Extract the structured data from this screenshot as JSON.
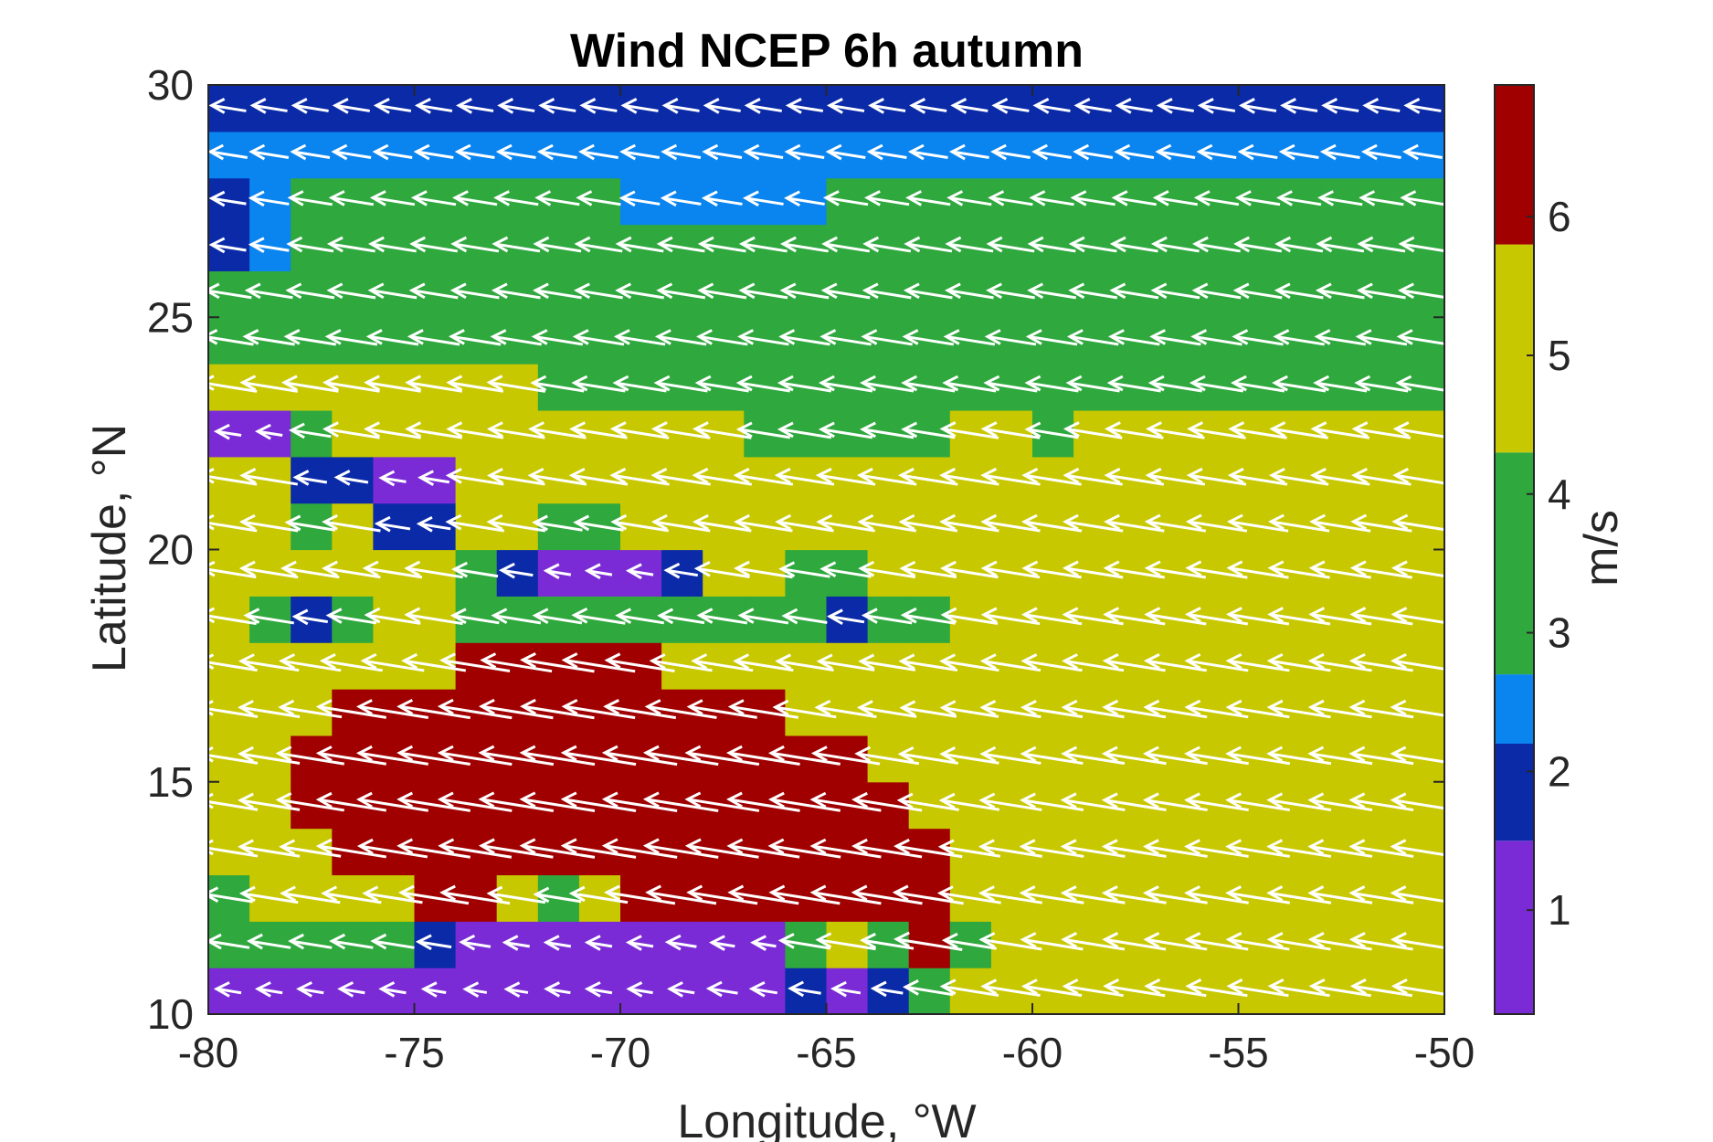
{
  "chart_data": {
    "type": "heatmap",
    "title": "Wind NCEP 6h autumn",
    "xlabel": "Longitude, °W",
    "ylabel": "Latitude, °N",
    "colorbar_label": "m/s",
    "xlim": [
      -80,
      -50
    ],
    "ylim": [
      10,
      30
    ],
    "xticks": [
      -80,
      -75,
      -70,
      -65,
      -60,
      -55,
      -50
    ],
    "yticks": [
      10,
      15,
      20,
      25,
      30
    ],
    "colorbar_range": [
      0.25,
      6.95
    ],
    "colorbar_ticks": [
      1,
      2,
      3,
      4,
      5,
      6
    ],
    "grid": false,
    "colormap": [
      {
        "to": 1.5,
        "color": "#7a2bd6"
      },
      {
        "to": 2.2,
        "color": "#0a2aa8"
      },
      {
        "to": 2.7,
        "color": "#0a84ef"
      },
      {
        "to": 4.3,
        "color": "#2fa83e"
      },
      {
        "to": 5.8,
        "color": "#c8c800"
      },
      {
        "to": 6.95,
        "color": "#a00000"
      }
    ],
    "grid_lon_start": -80,
    "grid_lat_start": 10,
    "cell_size_deg": 1,
    "wind_speed_rows_from_lat10": [
      [
        1.0,
        1.0,
        1.0,
        1.0,
        1.0,
        0.7,
        0.6,
        0.6,
        0.9,
        1.0,
        0.9,
        1.0,
        1.5,
        1.1,
        1.7,
        1.3,
        1.6,
        3.8,
        4.8,
        4.9,
        5.0,
        5.1,
        5.2,
        5.2,
        5.2,
        5.2,
        5.2,
        5.2,
        5.2,
        5.2
      ],
      [
        3.0,
        3.0,
        3.0,
        3.0,
        3.0,
        2.0,
        1.5,
        1.0,
        1.0,
        1.0,
        1.0,
        1.5,
        0.8,
        0.8,
        4.0,
        5.0,
        4.2,
        6.0,
        4.3,
        5.3,
        5.3,
        5.4,
        5.4,
        5.4,
        5.4,
        5.4,
        5.4,
        5.4,
        5.4,
        5.4
      ],
      [
        3.8,
        4.8,
        5.0,
        5.0,
        5.0,
        6.2,
        6.2,
        4.8,
        3.5,
        4.8,
        6.3,
        6.3,
        6.3,
        6.3,
        6.3,
        6.3,
        6.3,
        6.3,
        5.4,
        5.4,
        5.5,
        5.5,
        5.5,
        5.5,
        5.5,
        5.5,
        5.5,
        5.5,
        5.5,
        5.5
      ],
      [
        5.0,
        5.2,
        5.2,
        6.2,
        6.2,
        6.6,
        6.6,
        6.7,
        6.8,
        6.8,
        6.8,
        6.8,
        6.6,
        6.5,
        6.5,
        6.3,
        6.2,
        6.0,
        5.2,
        5.4,
        5.5,
        5.5,
        5.5,
        5.5,
        5.5,
        5.5,
        5.5,
        5.5,
        5.5,
        5.5
      ],
      [
        5.0,
        5.2,
        6.0,
        6.2,
        6.4,
        6.6,
        6.7,
        6.8,
        6.8,
        6.8,
        6.8,
        6.8,
        6.7,
        6.6,
        6.4,
        6.3,
        6.2,
        5.2,
        5.0,
        5.3,
        5.4,
        5.5,
        5.5,
        5.5,
        5.5,
        5.5,
        5.5,
        5.5,
        5.5,
        5.5
      ],
      [
        5.0,
        5.2,
        6.0,
        6.2,
        6.4,
        6.6,
        6.7,
        6.8,
        6.8,
        6.8,
        6.8,
        6.8,
        6.7,
        6.6,
        6.4,
        6.0,
        5.5,
        5.0,
        4.9,
        5.1,
        5.3,
        5.4,
        5.5,
        5.5,
        5.5,
        5.5,
        5.5,
        5.5,
        5.5,
        5.5
      ],
      [
        5.0,
        5.2,
        5.4,
        6.2,
        6.4,
        6.6,
        6.7,
        6.7,
        6.7,
        6.6,
        6.5,
        6.4,
        6.2,
        6.2,
        5.4,
        5.2,
        4.9,
        4.6,
        4.8,
        5.1,
        5.2,
        5.3,
        5.4,
        5.4,
        5.4,
        5.4,
        5.4,
        5.4,
        5.5,
        5.5
      ],
      [
        4.9,
        5.0,
        5.2,
        5.3,
        5.4,
        5.5,
        6.2,
        6.4,
        6.7,
        6.6,
        6.2,
        5.3,
        5.2,
        5.0,
        4.8,
        4.7,
        4.6,
        4.8,
        4.9,
        5.0,
        5.1,
        5.2,
        5.3,
        5.3,
        5.4,
        5.4,
        5.4,
        5.4,
        5.4,
        5.4
      ],
      [
        4.7,
        3.8,
        2.0,
        3.8,
        4.5,
        4.8,
        3.6,
        3.7,
        3.7,
        4.2,
        3.6,
        3.4,
        3.8,
        3.8,
        3.2,
        2.2,
        3.8,
        4.3,
        4.6,
        4.8,
        5.0,
        5.1,
        5.2,
        5.2,
        5.3,
        5.3,
        5.3,
        5.3,
        5.3,
        5.3
      ],
      [
        4.6,
        4.8,
        4.8,
        4.8,
        4.9,
        4.8,
        3.3,
        1.8,
        1.0,
        1.0,
        1.0,
        1.8,
        4.4,
        4.8,
        3.9,
        3.9,
        4.6,
        4.6,
        4.7,
        4.8,
        4.9,
        5.0,
        5.1,
        5.1,
        5.2,
        5.2,
        5.2,
        5.2,
        5.2,
        5.2
      ],
      [
        4.8,
        4.8,
        3.8,
        4.8,
        2.0,
        1.8,
        4.8,
        4.8,
        3.8,
        3.8,
        4.7,
        4.8,
        4.8,
        4.8,
        4.8,
        4.8,
        4.8,
        4.8,
        4.9,
        4.9,
        5.0,
        5.0,
        5.0,
        5.1,
        5.1,
        5.1,
        5.1,
        5.1,
        5.1,
        5.1
      ],
      [
        4.8,
        4.7,
        1.8,
        1.8,
        1.0,
        1.5,
        4.7,
        4.7,
        4.8,
        4.8,
        4.9,
        4.9,
        4.9,
        4.9,
        4.9,
        4.9,
        4.9,
        4.9,
        4.9,
        4.9,
        4.9,
        4.9,
        4.9,
        4.9,
        4.9,
        4.9,
        4.9,
        4.9,
        4.9,
        4.9
      ],
      [
        1.0,
        1.0,
        2.8,
        4.6,
        4.6,
        4.6,
        4.6,
        4.7,
        4.7,
        4.7,
        4.8,
        4.8,
        4.8,
        4.2,
        4.2,
        4.2,
        4.2,
        4.2,
        4.8,
        4.8,
        4.2,
        4.8,
        4.8,
        4.8,
        4.8,
        4.8,
        4.8,
        4.8,
        4.8,
        4.8
      ],
      [
        4.8,
        4.7,
        4.6,
        4.6,
        4.6,
        4.6,
        4.6,
        4.8,
        4.2,
        4.2,
        4.2,
        4.2,
        4.2,
        4.2,
        4.2,
        4.2,
        4.2,
        4.2,
        4.2,
        4.2,
        4.2,
        4.2,
        4.2,
        4.2,
        4.2,
        4.2,
        4.2,
        4.2,
        4.2,
        4.2
      ],
      [
        4.0,
        4.0,
        4.0,
        4.0,
        4.0,
        4.0,
        4.0,
        3.9,
        3.9,
        3.9,
        3.9,
        3.9,
        3.9,
        3.9,
        3.9,
        3.9,
        3.9,
        3.9,
        3.9,
        3.9,
        3.9,
        3.9,
        3.9,
        3.9,
        3.9,
        3.9,
        3.9,
        3.9,
        3.9,
        3.9
      ],
      [
        3.5,
        3.5,
        3.6,
        3.6,
        3.6,
        3.6,
        3.6,
        3.6,
        3.6,
        3.6,
        3.6,
        3.6,
        3.6,
        3.6,
        3.6,
        3.6,
        3.6,
        3.6,
        3.6,
        3.6,
        3.6,
        3.6,
        3.6,
        3.6,
        3.6,
        3.6,
        3.6,
        3.6,
        3.6,
        3.6
      ],
      [
        2.2,
        2.6,
        3.4,
        3.5,
        3.5,
        3.5,
        3.5,
        3.5,
        3.5,
        3.5,
        3.5,
        3.5,
        3.5,
        3.5,
        3.5,
        3.5,
        3.5,
        3.5,
        3.5,
        3.5,
        3.5,
        3.5,
        3.5,
        3.5,
        3.5,
        3.5,
        3.5,
        3.5,
        3.5,
        3.5
      ],
      [
        2.2,
        2.6,
        3.1,
        3.1,
        3.1,
        3.1,
        3.1,
        3.1,
        3.1,
        3.1,
        2.6,
        2.6,
        2.6,
        2.6,
        2.6,
        3.1,
        3.1,
        3.1,
        3.1,
        3.1,
        3.1,
        3.1,
        3.1,
        3.1,
        3.1,
        3.1,
        3.1,
        3.1,
        3.1,
        3.1
      ],
      [
        2.5,
        2.5,
        2.5,
        2.5,
        2.5,
        2.5,
        2.5,
        2.5,
        2.5,
        2.5,
        2.5,
        2.5,
        2.5,
        2.5,
        2.5,
        2.5,
        2.5,
        2.5,
        2.5,
        2.5,
        2.5,
        2.5,
        2.5,
        2.5,
        2.5,
        2.5,
        2.5,
        2.5,
        2.5,
        2.5
      ],
      [
        2.2,
        2.2,
        2.2,
        2.2,
        2.2,
        2.2,
        2.2,
        2.2,
        2.2,
        2.2,
        2.2,
        2.2,
        2.2,
        2.2,
        2.2,
        2.2,
        2.2,
        2.2,
        2.2,
        2.2,
        2.2,
        2.2,
        2.2,
        2.2,
        2.2,
        2.2,
        2.2,
        2.2,
        2.2,
        2.2
      ]
    ],
    "wind_direction": "easterly (arrows point west)"
  }
}
